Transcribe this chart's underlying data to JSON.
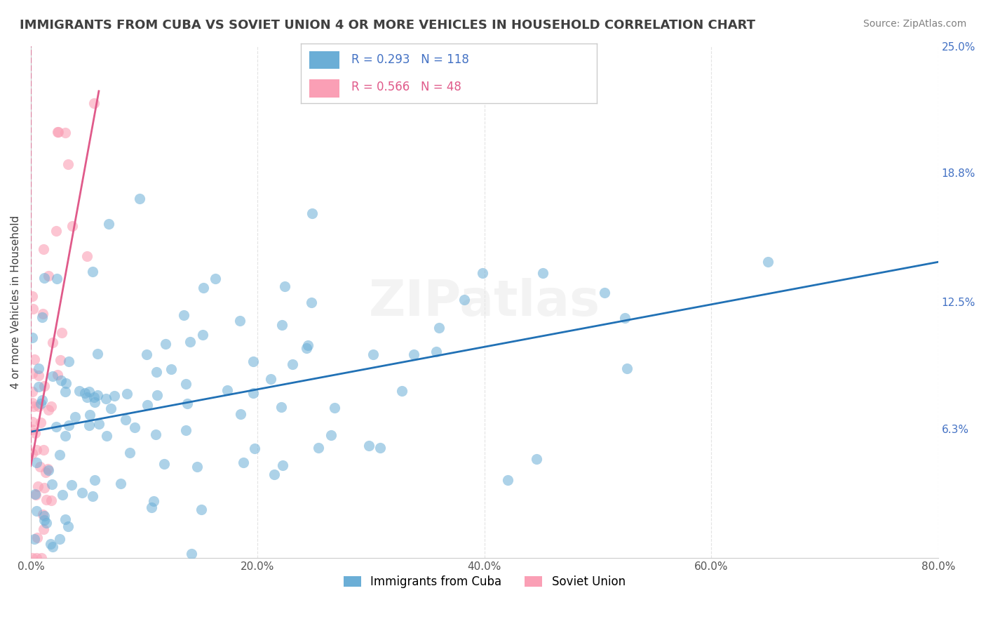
{
  "title": "IMMIGRANTS FROM CUBA VS SOVIET UNION 4 OR MORE VEHICLES IN HOUSEHOLD CORRELATION CHART",
  "source": "Source: ZipAtlas.com",
  "ylabel": "4 or more Vehicles in Household",
  "xlim": [
    0.0,
    0.8
  ],
  "ylim": [
    0.0,
    0.25
  ],
  "xtick_labels": [
    "0.0%",
    "20.0%",
    "40.0%",
    "60.0%",
    "80.0%"
  ],
  "xtick_values": [
    0.0,
    0.2,
    0.4,
    0.6,
    0.8
  ],
  "ytick_labels_right": [
    "6.3%",
    "12.5%",
    "18.8%",
    "25.0%"
  ],
  "ytick_values_right": [
    0.063,
    0.125,
    0.188,
    0.25
  ],
  "cuba_R": 0.293,
  "cuba_N": 118,
  "soviet_R": 0.566,
  "soviet_N": 48,
  "cuba_color": "#6baed6",
  "soviet_color": "#fa9fb5",
  "cuba_line_color": "#2171b5",
  "soviet_line_color": "#e05a8a",
  "background_color": "#ffffff",
  "grid_color": "#dddddd",
  "watermark": "ZIPatlas",
  "title_color": "#404040",
  "source_color": "#808080",
  "legend_cuba_label": "Immigrants from Cuba",
  "legend_soviet_label": "Soviet Union"
}
